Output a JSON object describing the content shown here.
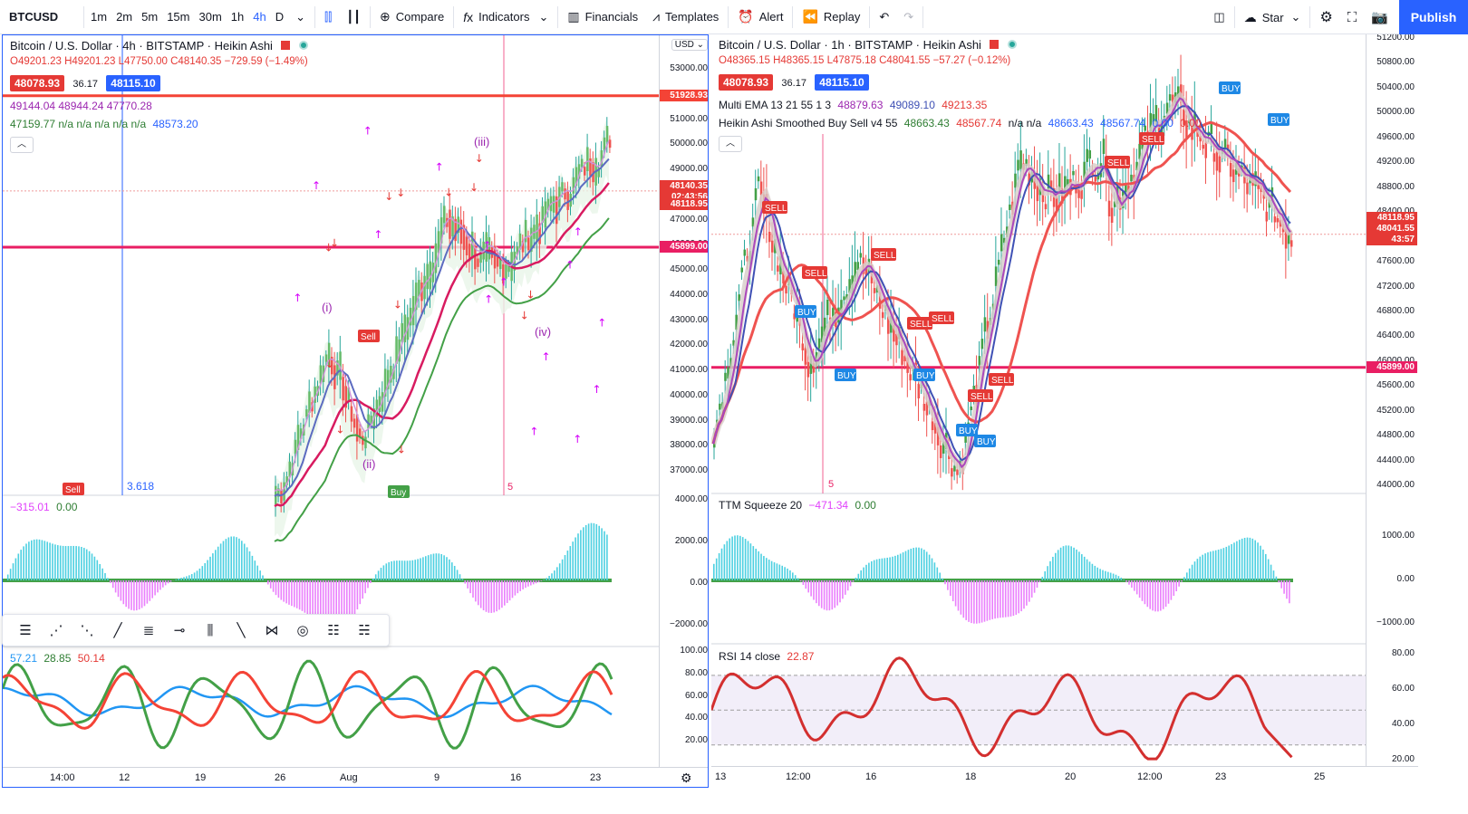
{
  "toolbar": {
    "symbol": "BTCUSD",
    "timeframes": [
      "1m",
      "2m",
      "5m",
      "15m",
      "30m",
      "1h",
      "4h",
      "D"
    ],
    "active_timeframe": "4h",
    "compare": "Compare",
    "indicators": "Indicators",
    "financials": "Financials",
    "templates": "Templates",
    "alert": "Alert",
    "replay": "Replay",
    "star": "Star",
    "publish": "Publish"
  },
  "left": {
    "title": "Bitcoin / U.S. Dollar · 4h · BITSTAMP · Heikin Ashi",
    "ohlc": "O49201.23  H49201.23  L47750.00  C48140.35  −729.59 (−1.49%)",
    "bid": "48078.93",
    "spread": "36.17",
    "ask": "48115.10",
    "ind1": "49144.04  48944.24  47770.28",
    "ind2_a": "47159.77  n/a  n/a  n/a  n/a  n/a",
    "ind2_b": "48573.20",
    "currency": "USD",
    "axis": [
      "53000.00",
      "52000.00",
      "51000.00",
      "50000.00",
      "49000.00",
      "48000.00",
      "47000.00",
      "46000.00",
      "45000.00",
      "44000.00",
      "43000.00",
      "42000.00",
      "41000.00",
      "40000.00",
      "39000.00",
      "38000.00",
      "37000.00"
    ],
    "tag_red_top": "51928.93",
    "tag_price": "48140.35",
    "tag_countdown": "02:43:56",
    "tag_red2": "48118.95",
    "tag_line": "45899.00",
    "fib": "3.618",
    "vline_label": "5",
    "wave_labels": [
      "(iii)",
      "(i)",
      "(ii)",
      "(iv)",
      "Sell",
      "Buy",
      "Sell"
    ],
    "squeeze_legend_a": "−315.01",
    "squeeze_legend_b": "0.00",
    "squeeze_axis": [
      "4000.00",
      "2000.00",
      "0.00",
      "−2000.00"
    ],
    "rsi_legend": [
      "57.21",
      "28.85",
      "50.14"
    ],
    "rsi_axis": [
      "100.00",
      "80.00",
      "60.00",
      "40.00",
      "20.00"
    ],
    "time": [
      "14:00",
      "12",
      "19",
      "26",
      "Aug",
      "9",
      "16",
      "23"
    ]
  },
  "right": {
    "title": "Bitcoin / U.S. Dollar · 1h · BITSTAMP · Heikin Ashi",
    "ohlc": "O48365.15  H48365.15  L47875.18  C48041.55  −57.27 (−0.12%)",
    "bid": "48078.93",
    "spread": "36.17",
    "ask": "48115.10",
    "ema_label": "Multi EMA 13 21 55 1 3",
    "ema_vals": [
      "48879.63",
      "49089.10",
      "49213.35"
    ],
    "ha_label": "Heikin Ashi Smoothed Buy Sell v4 55",
    "ha_vals": [
      "48663.43",
      "48567.74",
      "n/a n/a",
      "48663.43",
      "48567.74",
      "0.00",
      "0.00"
    ],
    "axis": [
      "51200.00",
      "50800.00",
      "50400.00",
      "50000.00",
      "49600.00",
      "49200.00",
      "48800.00",
      "48400.00",
      "48000.00",
      "47600.00",
      "47200.00",
      "46800.00",
      "46400.00",
      "46000.00",
      "45600.00",
      "45200.00",
      "44800.00",
      "44400.00",
      "44000.00"
    ],
    "tag_price": "48118.95",
    "tag_price2": "48041.55",
    "tag_countdown": "43:57",
    "tag_line": "45899.00",
    "vline_label": "5",
    "signals": [
      "SELL",
      "SELL",
      "SELL",
      "SELL",
      "SELL",
      "SELL",
      "SELL",
      "SELL",
      "SELL",
      "BUY",
      "BUY",
      "BUY",
      "BUY",
      "BUY",
      "BUY",
      "BUY"
    ],
    "squeeze_label": "TTM Squeeze 20",
    "squeeze_a": "−471.34",
    "squeeze_b": "0.00",
    "squeeze_axis": [
      "1000.00",
      "0.00",
      "−1000.00"
    ],
    "rsi_label": "RSI 14 close",
    "rsi_val": "22.87",
    "rsi_axis": [
      "80.00",
      "60.00",
      "40.00",
      "20.00"
    ],
    "time": [
      "13",
      "12:00",
      "16",
      "18",
      "20",
      "12:00",
      "23",
      "25"
    ]
  },
  "colors": {
    "accent": "#2962ff",
    "red": "#e53935",
    "green": "#26a69a",
    "hline": "#e91e63",
    "cyan": "#4dd0e1",
    "magenta": "#e040fb"
  }
}
